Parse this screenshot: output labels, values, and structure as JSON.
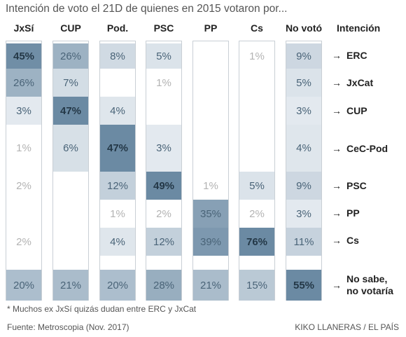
{
  "title": "Intención de voto el 21D de quienes en 2015 votaron por...",
  "intencion_header": "Intención",
  "footnote": "* Muchos ex JxSí quizás dudan entre ERC y JxCat",
  "source": "Fuente: Metroscopia (Nov. 2017)",
  "credit": "KIKO LLANERAS / EL PAÍS",
  "arrow_glyph": "→",
  "colors": {
    "low": "#e9eef3",
    "high": "#6b8aa3",
    "border": "#c9cfd5",
    "faint_text": "#b3b3b3"
  },
  "chart_data": {
    "type": "table",
    "columns": [
      "JxSí",
      "CUP",
      "Pod.",
      "PSC",
      "PP",
      "Cs",
      "No votó"
    ],
    "rows": [
      "ERC",
      "JxCat",
      "CUP",
      "CeC-Pod",
      "PSC",
      "PP",
      "Cs",
      "No sabe,\nno votaría"
    ],
    "values": [
      [
        45,
        26,
        8,
        5,
        null,
        1,
        9
      ],
      [
        26,
        7,
        null,
        1,
        null,
        null,
        5
      ],
      [
        3,
        47,
        4,
        null,
        null,
        null,
        3
      ],
      [
        1,
        6,
        47,
        3,
        null,
        null,
        4
      ],
      [
        2,
        null,
        12,
        49,
        1,
        5,
        9
      ],
      [
        null,
        null,
        1,
        2,
        35,
        2,
        3
      ],
      [
        2,
        null,
        4,
        12,
        39,
        76,
        11
      ],
      [
        20,
        21,
        20,
        28,
        21,
        15,
        55
      ]
    ],
    "unit": "%"
  }
}
